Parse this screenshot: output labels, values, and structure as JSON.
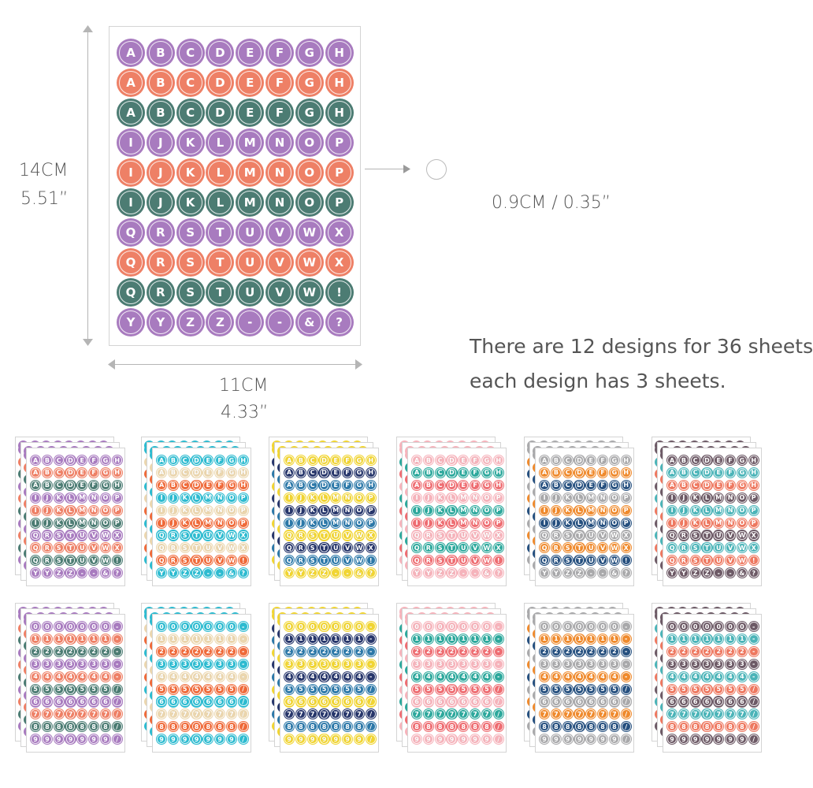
{
  "main_sheet": {
    "rows": [
      {
        "labels": [
          "A",
          "B",
          "C",
          "D",
          "E",
          "F",
          "G",
          "H"
        ],
        "color": "#A87BBF"
      },
      {
        "labels": [
          "A",
          "B",
          "C",
          "D",
          "E",
          "F",
          "G",
          "H"
        ],
        "color": "#EE8066"
      },
      {
        "labels": [
          "A",
          "B",
          "C",
          "D",
          "E",
          "F",
          "G",
          "H"
        ],
        "color": "#4C7C73"
      },
      {
        "labels": [
          "I",
          "J",
          "K",
          "L",
          "M",
          "N",
          "O",
          "P"
        ],
        "color": "#A87BBF"
      },
      {
        "labels": [
          "I",
          "J",
          "K",
          "L",
          "M",
          "N",
          "O",
          "P"
        ],
        "color": "#EE8066"
      },
      {
        "labels": [
          "I",
          "J",
          "K",
          "L",
          "M",
          "N",
          "O",
          "P"
        ],
        "color": "#4C7C73"
      },
      {
        "labels": [
          "Q",
          "R",
          "S",
          "T",
          "U",
          "V",
          "W",
          "X"
        ],
        "color": "#A87BBF"
      },
      {
        "labels": [
          "Q",
          "R",
          "S",
          "T",
          "U",
          "V",
          "W",
          "X"
        ],
        "color": "#EE8066"
      },
      {
        "labels": [
          "Q",
          "R",
          "S",
          "T",
          "U",
          "V",
          "W",
          "!"
        ],
        "color": "#4C7C73"
      },
      {
        "labels": [
          "Y",
          "Y",
          "Z",
          "Z",
          "-",
          "-",
          "&",
          "?"
        ],
        "color": "#A87BBF"
      }
    ]
  },
  "dimensions": {
    "height_cm": "14CM",
    "height_in": "5.51”",
    "width_cm": "11CM",
    "width_in": "4.33”",
    "circle_size": "0.9CM / 0.35”"
  },
  "info": {
    "line1": "There are 12 designs for 36 sheets",
    "line2": "each design has 3 sheets."
  },
  "letter_rows": [
    [
      "A",
      "B",
      "C",
      "D",
      "E",
      "F",
      "G",
      "H"
    ],
    [
      "A",
      "B",
      "C",
      "D",
      "E",
      "F",
      "G",
      "H"
    ],
    [
      "A",
      "B",
      "C",
      "D",
      "E",
      "F",
      "G",
      "H"
    ],
    [
      "I",
      "J",
      "K",
      "L",
      "M",
      "N",
      "O",
      "P"
    ],
    [
      "I",
      "J",
      "K",
      "L",
      "M",
      "N",
      "O",
      "P"
    ],
    [
      "I",
      "J",
      "K",
      "L",
      "M",
      "N",
      "O",
      "P"
    ],
    [
      "Q",
      "R",
      "S",
      "T",
      "U",
      "V",
      "W",
      "X"
    ],
    [
      "Q",
      "R",
      "S",
      "T",
      "U",
      "V",
      "W",
      "X"
    ],
    [
      "Q",
      "R",
      "S",
      "T",
      "U",
      "V",
      "W",
      "!"
    ],
    [
      "Y",
      "Y",
      "Z",
      "Z",
      "-",
      "-",
      "&",
      "?"
    ]
  ],
  "number_rows": [
    [
      "0",
      "0",
      "0",
      "0",
      "0",
      "0",
      "0",
      "-"
    ],
    [
      "1",
      "1",
      "1",
      "1",
      "1",
      "1",
      "1",
      "-"
    ],
    [
      "2",
      "2",
      "2",
      "2",
      "2",
      "2",
      "2",
      "-"
    ],
    [
      "3",
      "3",
      "3",
      "3",
      "3",
      "3",
      "3",
      "-"
    ],
    [
      "4",
      "4",
      "4",
      "4",
      "4",
      "4",
      "4",
      "-"
    ],
    [
      "5",
      "5",
      "5",
      "5",
      "5",
      "5",
      "5",
      "/"
    ],
    [
      "6",
      "6",
      "6",
      "6",
      "6",
      "6",
      "6",
      "/"
    ],
    [
      "7",
      "7",
      "7",
      "7",
      "7",
      "7",
      "7",
      "/"
    ],
    [
      "8",
      "8",
      "8",
      "8",
      "8",
      "8",
      "8",
      "/"
    ],
    [
      "9",
      "9",
      "9",
      "9",
      "9",
      "9",
      "9",
      "/"
    ]
  ],
  "designs": [
    {
      "name": "purple-coral-teal-letters",
      "type": "letters",
      "colors": [
        "#A87BBF",
        "#EE8066",
        "#4C7C73"
      ]
    },
    {
      "name": "cyan-beige-orange-letters",
      "type": "letters",
      "colors": [
        "#2DBBD0",
        "#EBD6AE",
        "#EF6A3A"
      ]
    },
    {
      "name": "yellow-navy-blue-letters",
      "type": "letters",
      "colors": [
        "#F1D532",
        "#27366B",
        "#2C78A8"
      ]
    },
    {
      "name": "pink-teal-coral-letters",
      "type": "letters",
      "colors": [
        "#F6B3BB",
        "#2DA89C",
        "#EE6D72"
      ]
    },
    {
      "name": "gray-orange-navy-letters",
      "type": "letters",
      "colors": [
        "#A9A9AB",
        "#EF8A2D",
        "#26507F"
      ]
    },
    {
      "name": "plum-teal-coral-letters",
      "type": "letters",
      "colors": [
        "#6D5A66",
        "#4BB4B8",
        "#EE7860"
      ]
    },
    {
      "name": "purple-coral-teal-numbers",
      "type": "numbers",
      "colors": [
        "#A87BBF",
        "#EE8066",
        "#4C7C73"
      ]
    },
    {
      "name": "cyan-beige-orange-numbers",
      "type": "numbers",
      "colors": [
        "#2DBBD0",
        "#EBD6AE",
        "#EF6A3A"
      ]
    },
    {
      "name": "yellow-navy-blue-numbers",
      "type": "numbers",
      "colors": [
        "#F1D532",
        "#27366B",
        "#2C78A8"
      ]
    },
    {
      "name": "pink-teal-coral-numbers",
      "type": "numbers",
      "colors": [
        "#F6B3BB",
        "#2DA89C",
        "#EE6D72"
      ]
    },
    {
      "name": "gray-orange-navy-numbers",
      "type": "numbers",
      "colors": [
        "#A9A9AB",
        "#EF8A2D",
        "#26507F"
      ]
    },
    {
      "name": "plum-teal-coral-numbers",
      "type": "numbers",
      "colors": [
        "#6D5A66",
        "#4BB4B8",
        "#EE7860"
      ]
    }
  ]
}
